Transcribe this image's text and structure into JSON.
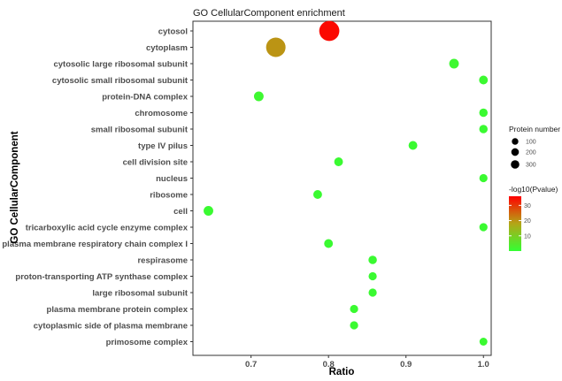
{
  "chart_data": {
    "type": "scatter",
    "title": "GO CellularComponent enrichment",
    "xlabel": "Ratio",
    "ylabel": "GO CellularComponent",
    "xlim": [
      0.625,
      1.01
    ],
    "xticks": [
      "0.7",
      "0.8",
      "0.9",
      "1.0"
    ],
    "xtick_values": [
      0.7,
      0.8,
      0.9,
      1.0
    ],
    "grid": false,
    "categories": [
      "cytosol",
      "cytoplasm",
      "cytosolic large ribosomal subunit",
      "cytosolic small ribosomal subunit",
      "protein-DNA complex",
      "chromosome",
      "small ribosomal subunit",
      "type IV pilus",
      "cell division site",
      "nucleus",
      "ribosome",
      "cell",
      "tricarboxylic acid cycle enzyme complex",
      "plasma membrane respiratory chain complex I",
      "respirasome",
      "proton-transporting ATP synthase complex",
      "large ribosomal subunit",
      "plasma membrane protein complex",
      "cytoplasmic side of plasma membrane",
      "primosome complex"
    ],
    "points": [
      {
        "term": "cytosol",
        "ratio": 0.801,
        "protein_number": 330,
        "neglog10p": 35
      },
      {
        "term": "cytoplasm",
        "ratio": 0.732,
        "protein_number": 300,
        "neglog10p": 20
      },
      {
        "term": "cytosolic large ribosomal subunit",
        "ratio": 0.962,
        "protein_number": 25,
        "neglog10p": 1.5
      },
      {
        "term": "cytosolic small ribosomal subunit",
        "ratio": 1.0,
        "protein_number": 15,
        "neglog10p": 1.2
      },
      {
        "term": "protein-DNA complex",
        "ratio": 0.71,
        "protein_number": 25,
        "neglog10p": 1.5
      },
      {
        "term": "chromosome",
        "ratio": 1.0,
        "protein_number": 12,
        "neglog10p": 1.0
      },
      {
        "term": "small ribosomal subunit",
        "ratio": 1.0,
        "protein_number": 12,
        "neglog10p": 1.0
      },
      {
        "term": "type IV pilus",
        "ratio": 0.909,
        "protein_number": 15,
        "neglog10p": 1.0
      },
      {
        "term": "cell division site",
        "ratio": 0.813,
        "protein_number": 15,
        "neglog10p": 1.0
      },
      {
        "term": "nucleus",
        "ratio": 1.0,
        "protein_number": 10,
        "neglog10p": 1.0
      },
      {
        "term": "ribosome",
        "ratio": 0.786,
        "protein_number": 15,
        "neglog10p": 1.0
      },
      {
        "term": "cell",
        "ratio": 0.645,
        "protein_number": 25,
        "neglog10p": 1.0
      },
      {
        "term": "tricarboxylic acid cycle enzyme complex",
        "ratio": 1.0,
        "protein_number": 10,
        "neglog10p": 1.0
      },
      {
        "term": "plasma membrane respiratory chain complex I",
        "ratio": 0.8,
        "protein_number": 15,
        "neglog10p": 1.0
      },
      {
        "term": "respirasome",
        "ratio": 0.857,
        "protein_number": 12,
        "neglog10p": 1.0
      },
      {
        "term": "proton-transporting ATP synthase complex",
        "ratio": 0.857,
        "protein_number": 10,
        "neglog10p": 1.0
      },
      {
        "term": "large ribosomal subunit",
        "ratio": 0.857,
        "protein_number": 10,
        "neglog10p": 1.0
      },
      {
        "term": "plasma membrane protein complex",
        "ratio": 0.833,
        "protein_number": 10,
        "neglog10p": 1.0
      },
      {
        "term": "cytoplasmic side of plasma membrane",
        "ratio": 0.833,
        "protein_number": 10,
        "neglog10p": 1.0
      },
      {
        "term": "primosome complex",
        "ratio": 1.0,
        "protein_number": 8,
        "neglog10p": 1.0
      }
    ],
    "size_legend": {
      "title": "Protein number",
      "entries": [
        {
          "label": "100",
          "value": 100
        },
        {
          "label": "200",
          "value": 200
        },
        {
          "label": "300",
          "value": 300
        }
      ]
    },
    "color_legend": {
      "title": "-log10(Pvalue)",
      "range": [
        0,
        36
      ],
      "ticks": [
        {
          "label": "10",
          "value": 10
        },
        {
          "label": "20",
          "value": 20
        },
        {
          "label": "30",
          "value": 30
        }
      ],
      "low_color": "#33ff33",
      "mid_color": "#b3a617",
      "high_color": "#ff0000"
    },
    "legend_position": "right"
  }
}
